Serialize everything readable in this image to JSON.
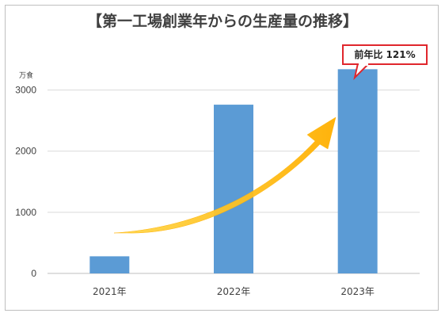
{
  "chart_data": {
    "type": "bar",
    "title": "【第一工場創業年からの生産量の推移】",
    "unit_label": "万食",
    "categories": [
      "2021年",
      "2022年",
      "2023年"
    ],
    "values": [
      280,
      2760,
      3340
    ],
    "ylim": [
      0,
      3500
    ],
    "yticks": [
      0,
      1000,
      2000,
      3000
    ],
    "grid": true,
    "bar_color": "#5b9bd5",
    "arrow_color": "#ffc000",
    "annotation": {
      "text": "前年比 121%",
      "border_color": "#e0262c"
    }
  }
}
